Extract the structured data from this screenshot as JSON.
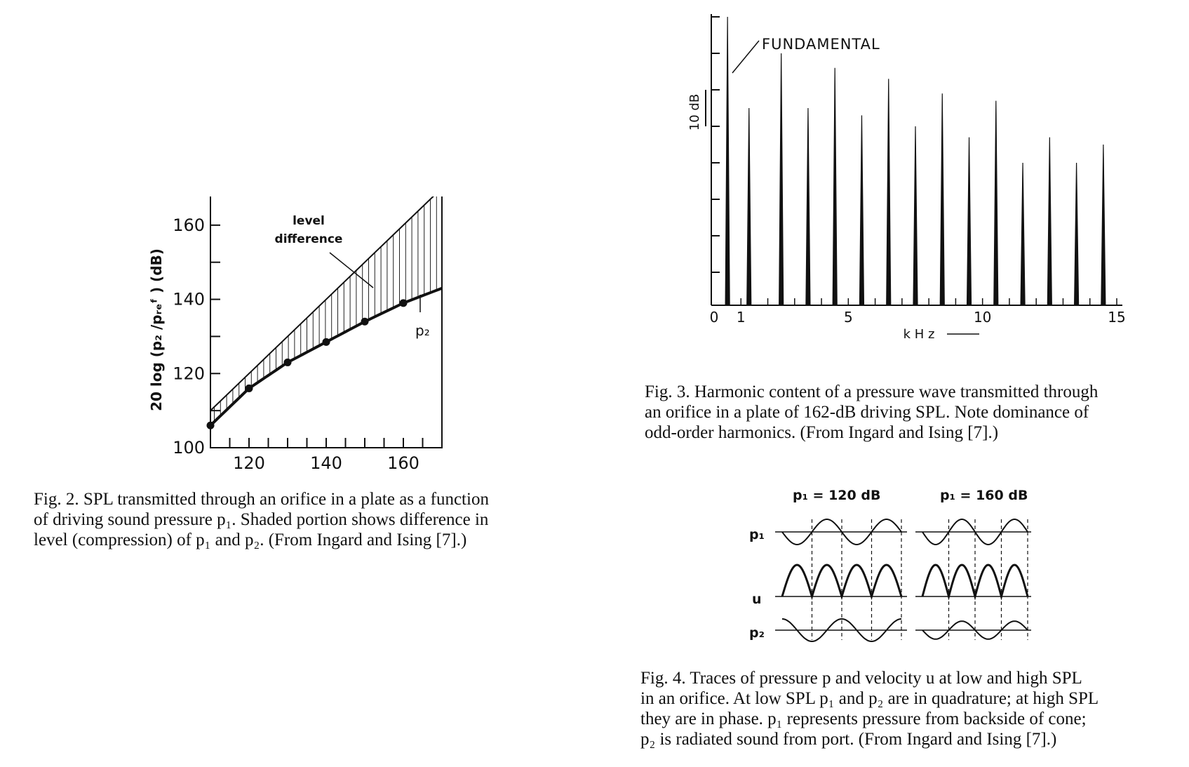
{
  "figures": {
    "fig2": {
      "caption_lines": [
        "Fig. 2. SPL transmitted through an orifice in a plate as a function",
        "of driving sound pressure p₁. Shaded portion shows difference in",
        "level (compression) of p₁ and p₂. (From Ingard and Ising [7].)"
      ],
      "ylabel": "20 log (p₂ /pᵣₑᶠ ) (dB)",
      "annotation_line1": "level",
      "annotation_line2": "difference",
      "curve_label": "p₂"
    },
    "fig3": {
      "caption_lines": [
        "Fig. 3. Harmonic content of a pressure wave transmitted through",
        "an orifice in a plate of 162-dB driving SPL. Note dominance of",
        "odd-order harmonics. (From Ingard and Ising [7].)"
      ],
      "annotation": "FUNDAMENTAL",
      "scale_label": "10 dB",
      "xlabel": "k H z"
    },
    "fig4": {
      "caption_lines": [
        "Fig. 4. Traces of pressure p and velocity u at low and high SPL",
        "in an orifice. At low SPL p₁ and p₂ are in quadrature; at high SPL",
        "they are in phase. p₁ represents pressure from backside of cone;",
        "p₂ is radiated sound from port. (From Ingard and Ising [7].)"
      ],
      "panel_titles": [
        "p₁ = 120 dB",
        "p₁ = 160 dB"
      ],
      "row_labels": [
        "p₁",
        "u",
        "p₂"
      ]
    }
  },
  "chart_data": [
    {
      "type": "line",
      "x": [
        110,
        120,
        130,
        140,
        150,
        160,
        170
      ],
      "xlim": [
        110,
        170
      ],
      "ylim": [
        100,
        170
      ],
      "xticks": [
        120,
        140,
        160
      ],
      "yticks": [
        100,
        120,
        140,
        160
      ],
      "series": [
        {
          "values": [
            110,
            120,
            130,
            140,
            150,
            160,
            170
          ]
        },
        {
          "name": "p₂",
          "values": [
            106,
            116,
            123,
            128.5,
            134,
            139,
            143
          ]
        }
      ],
      "markers": {
        "x": [
          110,
          120,
          130,
          140,
          150,
          160
        ],
        "y": [
          106,
          116,
          123,
          128.5,
          134,
          139
        ]
      },
      "grid": false
    },
    {
      "type": "bar",
      "x": [
        0.5,
        1.3,
        2.5,
        3.5,
        4.5,
        5.5,
        6.5,
        7.5,
        8.5,
        9.5,
        10.5,
        11.5,
        12.5,
        13.5,
        14.5
      ],
      "values": [
        0,
        -25,
        -10,
        -25,
        -14,
        -27,
        -17,
        -30,
        -21,
        -33,
        -23,
        -40,
        -33,
        -40,
        -35
      ],
      "xlim": [
        0,
        15
      ],
      "xticks": [
        0,
        1,
        5,
        10,
        15
      ],
      "ylabel_scale": "10 dB",
      "grid": false
    }
  ]
}
